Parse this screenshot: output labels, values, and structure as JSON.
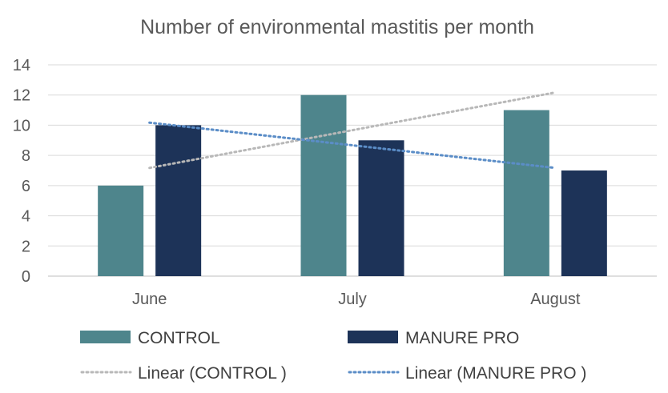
{
  "chart_data": {
    "type": "bar",
    "title": "Number of environmental mastitis per month",
    "categories": [
      "June",
      "July",
      "August"
    ],
    "series": [
      {
        "name": "CONTROL",
        "values": [
          6,
          12,
          11
        ],
        "color": "#4e858c"
      },
      {
        "name": "MANURE PRO",
        "values": [
          10,
          9,
          7
        ],
        "color": "#1d3358"
      }
    ],
    "trendlines": [
      {
        "name": "Linear (CONTROL )",
        "type": "linear",
        "of_series": "CONTROL",
        "values": [
          7.17,
          9.67,
          12.17
        ],
        "color": "#b8b8b8",
        "style": "dotted"
      },
      {
        "name": "Linear (MANURE PRO )",
        "type": "linear",
        "of_series": "MANURE PRO",
        "values": [
          10.17,
          8.67,
          7.17
        ],
        "color": "#5b8dc7",
        "style": "dotted"
      }
    ],
    "ylim": [
      0,
      14
    ],
    "yticks": [
      0,
      2,
      4,
      6,
      8,
      10,
      12,
      14
    ],
    "grid": true,
    "legend_position": "bottom",
    "xlabel": "",
    "ylabel": ""
  }
}
